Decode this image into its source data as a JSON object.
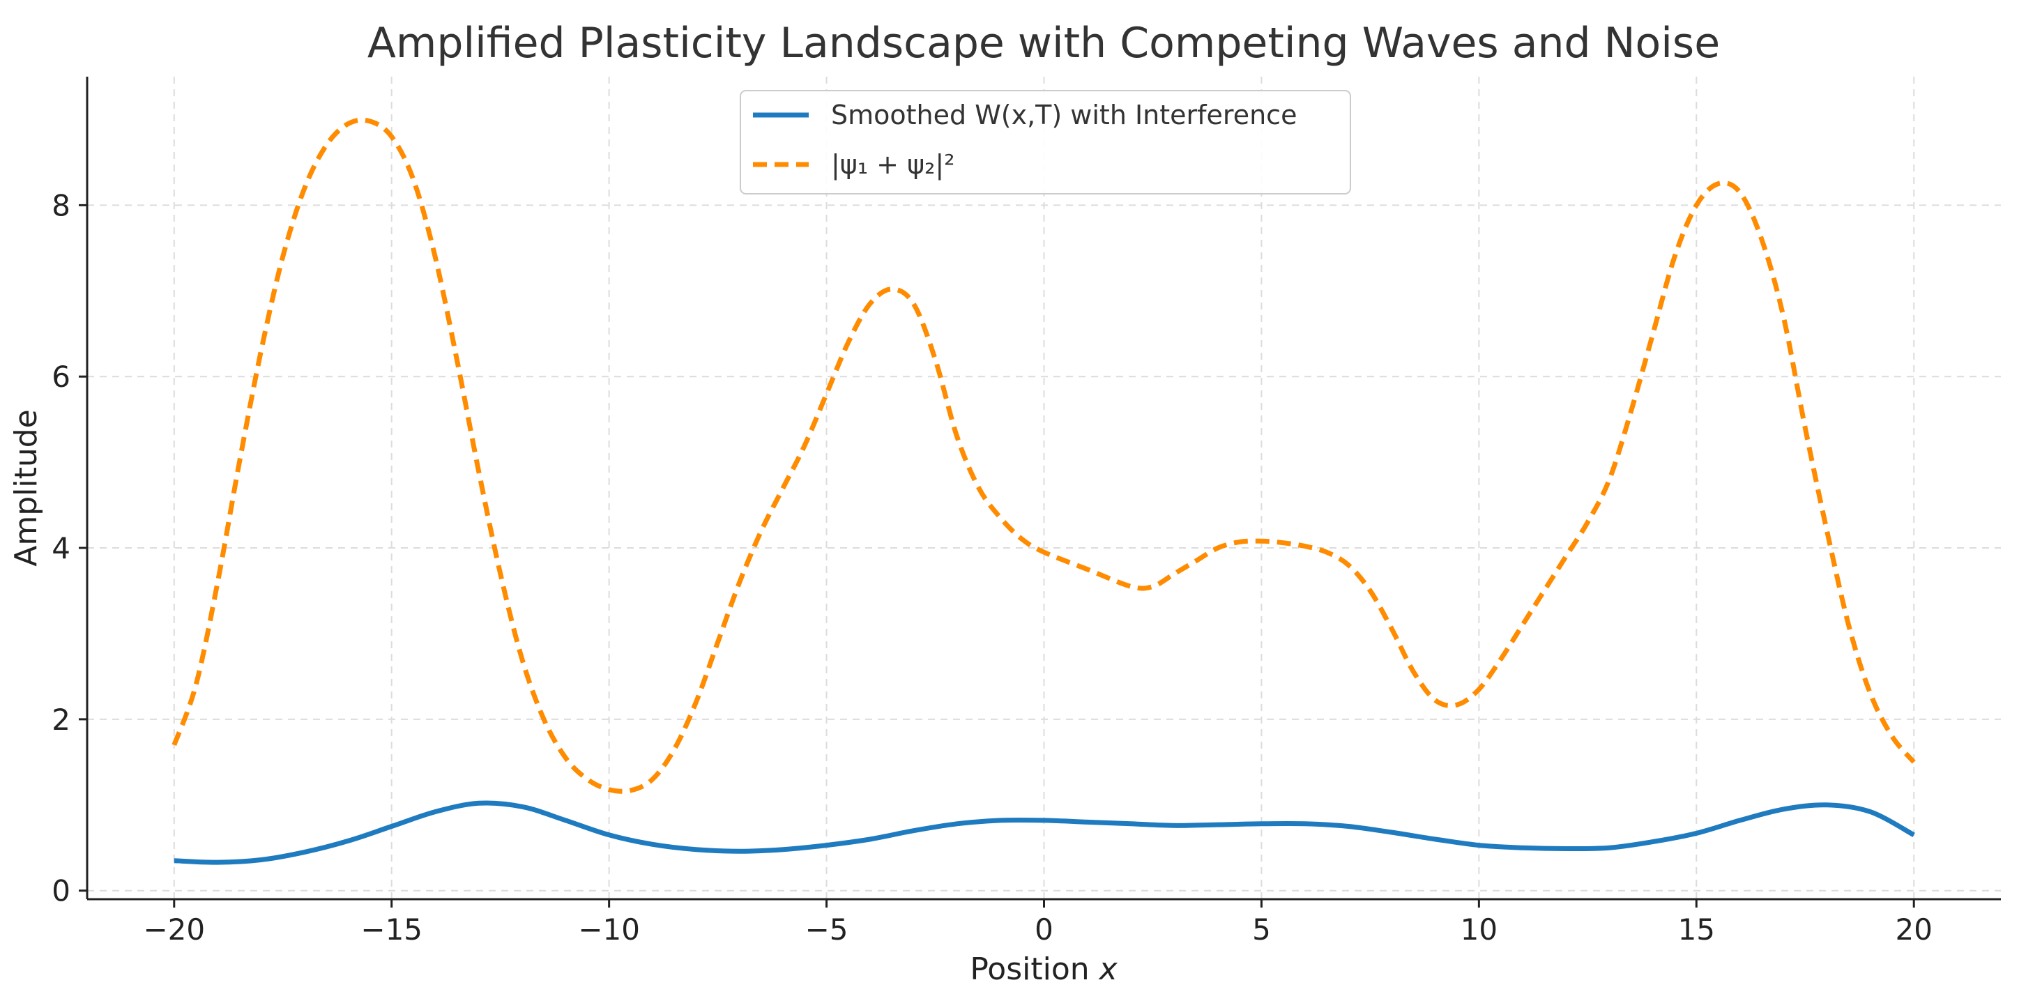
{
  "chart_data": {
    "type": "line",
    "title": "Amplified Plasticity Landscape with Competing Waves and Noise",
    "xlabel": "Position x",
    "ylabel": "Amplitude",
    "xlim": [
      -22,
      22
    ],
    "ylim": [
      -0.1,
      9.5
    ],
    "xticks": [
      -20,
      -15,
      -10,
      -5,
      0,
      5,
      10,
      15,
      20
    ],
    "yticks": [
      0,
      2,
      4,
      6,
      8
    ],
    "xtick_labels": [
      "−20",
      "−15",
      "−10",
      "−5",
      "0",
      "5",
      "10",
      "15",
      "20"
    ],
    "ytick_labels": [
      "0",
      "2",
      "4",
      "6",
      "8"
    ],
    "grid": true,
    "legend_position": "top-center",
    "series": [
      {
        "name": "Smoothed W(x, T) with Interference",
        "legend_label": "Smoothed W(x,T) with Interference",
        "color": "#1f7bbf",
        "style": "solid",
        "points": [
          [
            -20,
            0.35
          ],
          [
            -19,
            0.33
          ],
          [
            -18,
            0.36
          ],
          [
            -17,
            0.45
          ],
          [
            -16,
            0.58
          ],
          [
            -15,
            0.75
          ],
          [
            -14,
            0.92
          ],
          [
            -13,
            1.02
          ],
          [
            -12,
            0.98
          ],
          [
            -11,
            0.82
          ],
          [
            -10,
            0.65
          ],
          [
            -9,
            0.54
          ],
          [
            -8,
            0.48
          ],
          [
            -7,
            0.46
          ],
          [
            -6,
            0.48
          ],
          [
            -5,
            0.53
          ],
          [
            -4,
            0.6
          ],
          [
            -3,
            0.7
          ],
          [
            -2,
            0.78
          ],
          [
            -1,
            0.82
          ],
          [
            0,
            0.82
          ],
          [
            1,
            0.8
          ],
          [
            2,
            0.78
          ],
          [
            3,
            0.76
          ],
          [
            4,
            0.77
          ],
          [
            5,
            0.78
          ],
          [
            6,
            0.78
          ],
          [
            7,
            0.75
          ],
          [
            8,
            0.68
          ],
          [
            9,
            0.6
          ],
          [
            10,
            0.53
          ],
          [
            11,
            0.5
          ],
          [
            12,
            0.49
          ],
          [
            13,
            0.5
          ],
          [
            14,
            0.57
          ],
          [
            15,
            0.67
          ],
          [
            16,
            0.82
          ],
          [
            17,
            0.95
          ],
          [
            18,
            1.0
          ],
          [
            19,
            0.92
          ],
          [
            20,
            0.65
          ]
        ]
      },
      {
        "name": "|ψ₁ + ψ₂|²",
        "legend_label": "|ψ₁ + ψ₂|²",
        "color": "#ff8c00",
        "style": "dashed",
        "points": [
          [
            -20,
            1.7
          ],
          [
            -19.5,
            2.4
          ],
          [
            -19,
            3.6
          ],
          [
            -18.5,
            5.0
          ],
          [
            -18,
            6.3
          ],
          [
            -17.5,
            7.4
          ],
          [
            -17,
            8.2
          ],
          [
            -16.5,
            8.7
          ],
          [
            -16,
            8.95
          ],
          [
            -15.5,
            8.98
          ],
          [
            -15,
            8.8
          ],
          [
            -14.5,
            8.3
          ],
          [
            -14,
            7.4
          ],
          [
            -13.5,
            6.2
          ],
          [
            -13,
            4.9
          ],
          [
            -12.5,
            3.7
          ],
          [
            -12,
            2.7
          ],
          [
            -11.5,
            2.0
          ],
          [
            -11,
            1.55
          ],
          [
            -10.5,
            1.3
          ],
          [
            -10,
            1.18
          ],
          [
            -9.5,
            1.17
          ],
          [
            -9,
            1.3
          ],
          [
            -8.5,
            1.65
          ],
          [
            -8,
            2.2
          ],
          [
            -7.5,
            2.9
          ],
          [
            -7,
            3.6
          ],
          [
            -6.5,
            4.2
          ],
          [
            -6,
            4.7
          ],
          [
            -5.5,
            5.2
          ],
          [
            -5,
            5.8
          ],
          [
            -4.5,
            6.4
          ],
          [
            -4,
            6.85
          ],
          [
            -3.5,
            7.02
          ],
          [
            -3,
            6.85
          ],
          [
            -2.5,
            6.2
          ],
          [
            -2,
            5.3
          ],
          [
            -1.5,
            4.7
          ],
          [
            -1,
            4.35
          ],
          [
            -0.5,
            4.1
          ],
          [
            0,
            3.95
          ],
          [
            1,
            3.75
          ],
          [
            2,
            3.55
          ],
          [
            2.5,
            3.55
          ],
          [
            3,
            3.7
          ],
          [
            3.5,
            3.85
          ],
          [
            4,
            4.0
          ],
          [
            4.5,
            4.07
          ],
          [
            5,
            4.08
          ],
          [
            5.5,
            4.06
          ],
          [
            6,
            4.02
          ],
          [
            6.5,
            3.95
          ],
          [
            7,
            3.8
          ],
          [
            7.5,
            3.5
          ],
          [
            8,
            3.05
          ],
          [
            8.5,
            2.55
          ],
          [
            9,
            2.22
          ],
          [
            9.5,
            2.17
          ],
          [
            10,
            2.35
          ],
          [
            10.5,
            2.7
          ],
          [
            11,
            3.1
          ],
          [
            11.5,
            3.5
          ],
          [
            12,
            3.9
          ],
          [
            12.5,
            4.3
          ],
          [
            13,
            4.8
          ],
          [
            13.5,
            5.6
          ],
          [
            14,
            6.5
          ],
          [
            14.5,
            7.4
          ],
          [
            15,
            8.0
          ],
          [
            15.5,
            8.25
          ],
          [
            16,
            8.15
          ],
          [
            16.5,
            7.6
          ],
          [
            17,
            6.7
          ],
          [
            17.5,
            5.4
          ],
          [
            18,
            4.2
          ],
          [
            18.5,
            3.1
          ],
          [
            19,
            2.3
          ],
          [
            19.5,
            1.8
          ],
          [
            20,
            1.5
          ]
        ]
      }
    ]
  }
}
